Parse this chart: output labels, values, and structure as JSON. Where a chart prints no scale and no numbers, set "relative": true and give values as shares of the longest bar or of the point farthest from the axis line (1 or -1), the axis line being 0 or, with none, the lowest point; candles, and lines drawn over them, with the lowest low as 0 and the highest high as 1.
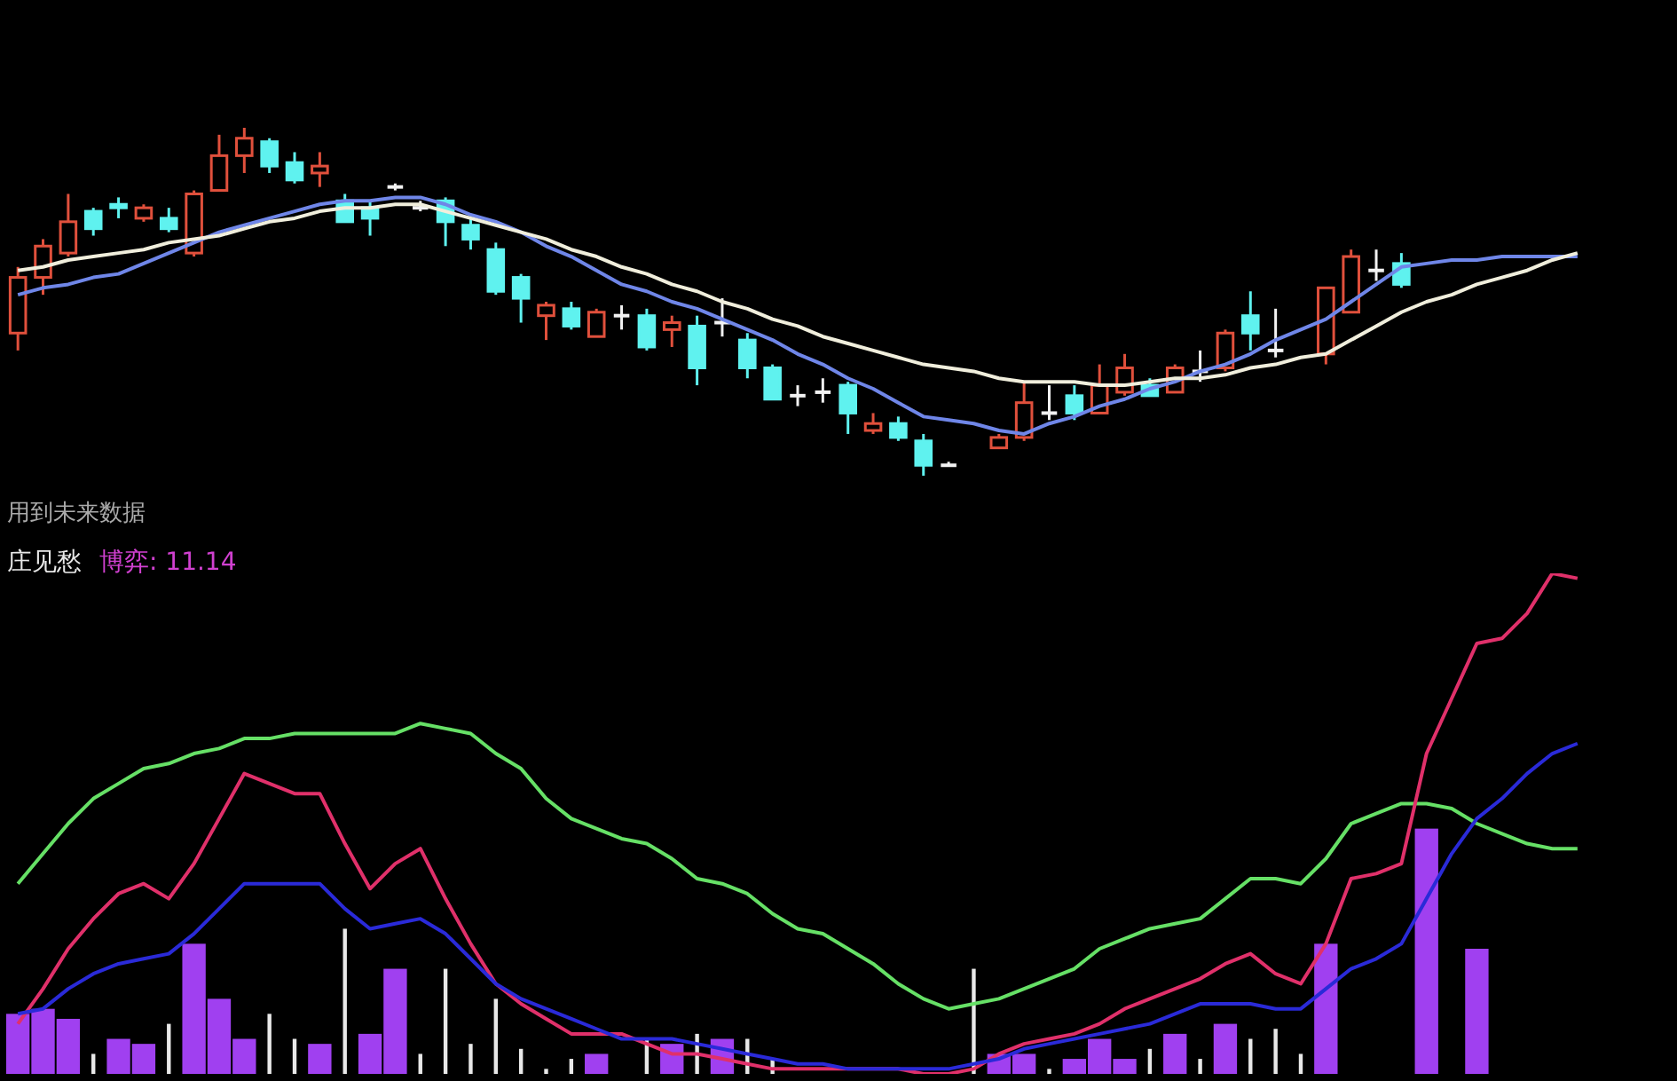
{
  "chart_data": [
    {
      "type": "candlestick",
      "relative": true,
      "annotations": [
        "用到未来数据"
      ],
      "categories": [
        null,
        null,
        null,
        null,
        null,
        null,
        null,
        null,
        null,
        null,
        null,
        null,
        null,
        null,
        null,
        null,
        null,
        null,
        null,
        null,
        null,
        null,
        null,
        null,
        null,
        null,
        null,
        null,
        null,
        null,
        null,
        null,
        null,
        null,
        null,
        null,
        null,
        null,
        null,
        null,
        null,
        null,
        null,
        null,
        null,
        null,
        null,
        null,
        null,
        null,
        null,
        null,
        null,
        null,
        null,
        null,
        null,
        null,
        null,
        null,
        null,
        null,
        null
      ],
      "ohlc": [
        [
          0.41,
          0.6,
          0.36,
          0.57
        ],
        [
          0.57,
          0.68,
          0.52,
          0.66
        ],
        [
          0.64,
          0.81,
          0.63,
          0.73
        ],
        [
          0.76,
          0.77,
          0.69,
          0.71
        ],
        [
          0.78,
          0.8,
          0.74,
          0.77
        ],
        [
          0.74,
          0.78,
          0.73,
          0.77
        ],
        [
          0.74,
          0.77,
          0.7,
          0.71
        ],
        [
          0.64,
          0.82,
          0.63,
          0.81
        ],
        [
          0.82,
          0.98,
          0.82,
          0.92
        ],
        [
          0.92,
          1,
          0.87,
          0.97
        ],
        [
          0.96,
          0.97,
          0.87,
          0.89
        ],
        [
          0.9,
          0.93,
          0.84,
          0.85
        ],
        [
          0.87,
          0.93,
          0.83,
          0.89
        ],
        [
          0.79,
          0.81,
          0.73,
          0.73
        ],
        [
          0.77,
          0.79,
          0.69,
          0.74
        ],
        [
          0.83,
          0.84,
          0.82,
          0.83
        ],
        [
          0.77,
          0.79,
          0.76,
          0.77
        ],
        [
          0.79,
          0.8,
          0.66,
          0.73
        ],
        [
          0.72,
          0.74,
          0.65,
          0.68
        ],
        [
          0.65,
          0.67,
          0.52,
          0.53
        ],
        [
          0.57,
          0.58,
          0.44,
          0.51
        ],
        [
          0.46,
          0.5,
          0.39,
          0.49
        ],
        [
          0.48,
          0.5,
          0.42,
          0.43
        ],
        [
          0.4,
          0.48,
          0.4,
          0.47
        ],
        [
          0.46,
          0.49,
          0.42,
          0.46
        ],
        [
          0.46,
          0.48,
          0.36,
          0.37
        ],
        [
          0.42,
          0.46,
          0.37,
          0.44
        ],
        [
          0.43,
          0.46,
          0.26,
          0.31
        ],
        [
          0.44,
          0.51,
          0.4,
          0.44
        ],
        [
          0.39,
          0.41,
          0.28,
          0.31
        ],
        [
          0.31,
          0.32,
          0.22,
          0.22
        ],
        [
          0.23,
          0.26,
          0.2,
          0.23
        ],
        [
          0.24,
          0.28,
          0.21,
          0.24
        ],
        [
          0.26,
          0.27,
          0.12,
          0.18
        ],
        [
          0.13,
          0.18,
          0.12,
          0.15
        ],
        [
          0.15,
          0.17,
          0.1,
          0.11
        ],
        [
          0.1,
          0.12,
          0,
          0.03
        ],
        [
          0.03,
          0.04,
          0.03,
          0.03
        ],
        null,
        [
          0.08,
          0.12,
          0.08,
          0.11
        ],
        [
          0.11,
          0.27,
          0.1,
          0.21
        ],
        [
          0.18,
          0.26,
          0.16,
          0.18
        ],
        [
          0.23,
          0.26,
          0.16,
          0.18
        ],
        [
          0.18,
          0.32,
          0.18,
          0.26
        ],
        [
          0.24,
          0.35,
          0.23,
          0.31
        ],
        [
          0.26,
          0.28,
          0.23,
          0.23
        ],
        [
          0.24,
          0.32,
          0.24,
          0.31
        ],
        [
          0.3,
          0.36,
          0.27,
          0.3
        ],
        [
          0.31,
          0.42,
          0.3,
          0.41
        ],
        [
          0.46,
          0.53,
          0.36,
          0.41
        ],
        [
          0.36,
          0.48,
          0.34,
          0.36
        ],
        null,
        [
          0.35,
          0.54,
          0.32,
          0.54
        ],
        [
          0.47,
          0.65,
          0.47,
          0.63
        ],
        [
          0.59,
          0.65,
          0.56,
          0.59
        ],
        [
          0.61,
          0.64,
          0.54,
          0.55
        ],
        null,
        null,
        null,
        null,
        null,
        null,
        null
      ],
      "series": [
        {
          "type": "line",
          "color": "#6f86e8",
          "values": [
            0.52,
            0.54,
            0.55,
            0.57,
            0.58,
            0.61,
            0.64,
            0.67,
            0.7,
            0.72,
            0.74,
            0.76,
            0.78,
            0.79,
            0.79,
            0.8,
            0.8,
            0.78,
            0.75,
            0.73,
            0.7,
            0.66,
            0.63,
            0.59,
            0.55,
            0.53,
            0.5,
            0.48,
            0.45,
            0.42,
            0.39,
            0.35,
            0.32,
            0.28,
            0.25,
            0.21,
            0.17,
            0.16,
            0.15,
            0.13,
            0.12,
            0.15,
            0.17,
            0.2,
            0.22,
            0.25,
            0.27,
            0.3,
            0.32,
            0.35,
            0.39,
            0.42,
            0.45,
            0.5,
            0.55,
            0.6,
            0.61,
            0.62,
            0.62,
            0.63,
            0.63,
            0.63,
            0.63
          ]
        },
        {
          "type": "line",
          "color": "#f0eedc",
          "values": [
            0.59,
            0.6,
            0.62,
            0.63,
            0.64,
            0.65,
            0.67,
            0.68,
            0.69,
            0.71,
            0.73,
            0.74,
            0.76,
            0.77,
            0.77,
            0.78,
            0.78,
            0.76,
            0.74,
            0.72,
            0.7,
            0.68,
            0.65,
            0.63,
            0.6,
            0.58,
            0.55,
            0.53,
            0.5,
            0.48,
            0.45,
            0.43,
            0.4,
            0.38,
            0.36,
            0.34,
            0.32,
            0.31,
            0.3,
            0.28,
            0.27,
            0.27,
            0.27,
            0.26,
            0.26,
            0.27,
            0.28,
            0.28,
            0.29,
            0.31,
            0.32,
            0.34,
            0.35,
            0.39,
            0.43,
            0.47,
            0.5,
            0.52,
            0.55,
            0.57,
            0.59,
            0.62,
            0.64
          ]
        }
      ]
    },
    {
      "type": "line",
      "relative": true,
      "title": "庄见愁",
      "annotations": [
        "博弈: 11.14"
      ],
      "categories": [
        null,
        null,
        null,
        null,
        null,
        null,
        null,
        null,
        null,
        null,
        null,
        null,
        null,
        null,
        null,
        null,
        null,
        null,
        null,
        null,
        null,
        null,
        null,
        null,
        null,
        null,
        null,
        null,
        null,
        null,
        null,
        null,
        null,
        null,
        null,
        null,
        null,
        null,
        null,
        null,
        null,
        null,
        null,
        null,
        null,
        null,
        null,
        null,
        null,
        null,
        null,
        null,
        null,
        null,
        null,
        null,
        null,
        null,
        null,
        null,
        null,
        null,
        null
      ],
      "series": [
        {
          "type": "bar",
          "color": "#a040f0",
          "values": [
            0.12,
            0.13,
            0.11,
            null,
            0.07,
            0.06,
            null,
            0.26,
            0.15,
            0.07,
            null,
            null,
            0.06,
            null,
            0.08,
            0.21,
            null,
            null,
            null,
            null,
            null,
            null,
            null,
            0.04,
            null,
            null,
            0.06,
            null,
            0.07,
            null,
            null,
            null,
            null,
            null,
            null,
            null,
            null,
            null,
            null,
            0.04,
            0.04,
            null,
            0.03,
            0.07,
            0.03,
            null,
            0.08,
            null,
            0.1,
            null,
            null,
            null,
            0.26,
            null,
            null,
            null,
            0.49,
            null,
            0.25,
            null,
            null,
            null,
            null
          ]
        },
        {
          "type": "bar",
          "color": "#e8e8e8",
          "values": [
            null,
            null,
            null,
            0.04,
            null,
            null,
            0.1,
            null,
            null,
            null,
            0.12,
            0.07,
            null,
            0.29,
            null,
            null,
            0.04,
            0.21,
            0.06,
            0.15,
            0.05,
            0.01,
            0.03,
            null,
            null,
            0.07,
            null,
            0.08,
            null,
            0.07,
            0.03,
            null,
            null,
            null,
            null,
            null,
            null,
            null,
            0.21,
            null,
            null,
            0.01,
            null,
            null,
            null,
            0.05,
            null,
            0.03,
            null,
            0.07,
            0.09,
            0.04,
            null,
            null,
            null,
            null,
            null,
            null,
            null,
            null,
            null,
            null,
            null
          ]
        },
        {
          "type": "line",
          "color": "#66e066",
          "values": [
            0.38,
            0.44,
            0.5,
            0.55,
            0.58,
            0.61,
            0.62,
            0.64,
            0.65,
            0.67,
            0.67,
            0.68,
            0.68,
            0.68,
            0.68,
            0.68,
            0.7,
            0.69,
            0.68,
            0.64,
            0.61,
            0.55,
            0.51,
            0.49,
            0.47,
            0.46,
            0.43,
            0.39,
            0.38,
            0.36,
            0.32,
            0.29,
            0.28,
            0.25,
            0.22,
            0.18,
            0.15,
            0.13,
            0.14,
            0.15,
            0.17,
            0.19,
            0.21,
            0.25,
            0.27,
            0.29,
            0.3,
            0.31,
            0.35,
            0.39,
            0.39,
            0.38,
            0.43,
            0.5,
            0.52,
            0.54,
            0.54,
            0.53,
            0.5,
            0.48,
            0.46,
            0.45,
            0.45
          ]
        },
        {
          "type": "line",
          "color": "#e0306a",
          "values": [
            0.1,
            0.17,
            0.25,
            0.31,
            0.36,
            0.38,
            0.35,
            0.42,
            0.51,
            0.6,
            0.58,
            0.56,
            0.56,
            0.46,
            0.37,
            0.42,
            0.45,
            0.35,
            0.26,
            0.18,
            0.14,
            0.11,
            0.08,
            0.08,
            0.08,
            0.06,
            0.04,
            0.04,
            0.03,
            0.02,
            0.01,
            0.01,
            0.01,
            0.01,
            0.01,
            0.01,
            0,
            0,
            0.01,
            0.04,
            0.06,
            0.07,
            0.08,
            0.1,
            0.13,
            0.15,
            0.17,
            0.19,
            0.22,
            0.24,
            0.2,
            0.18,
            0.26,
            0.39,
            0.4,
            0.42,
            0.64,
            0.75,
            0.86,
            0.87,
            0.92,
            1,
            0.99
          ]
        },
        {
          "type": "line",
          "color": "#2a2ad8",
          "values": [
            0.12,
            0.13,
            0.17,
            0.2,
            0.22,
            0.23,
            0.24,
            0.28,
            0.33,
            0.38,
            0.38,
            0.38,
            0.38,
            0.33,
            0.29,
            0.3,
            0.31,
            0.28,
            0.23,
            0.18,
            0.15,
            0.13,
            0.11,
            0.09,
            0.07,
            0.07,
            0.07,
            0.06,
            0.05,
            0.04,
            0.03,
            0.02,
            0.02,
            0.01,
            0.01,
            0.01,
            0.01,
            0.01,
            0.02,
            0.03,
            0.05,
            0.06,
            0.07,
            0.08,
            0.09,
            0.1,
            0.12,
            0.14,
            0.14,
            0.14,
            0.13,
            0.13,
            0.17,
            0.21,
            0.23,
            0.26,
            0.35,
            0.44,
            0.51,
            0.55,
            0.6,
            0.64,
            0.66
          ]
        }
      ]
    }
  ]
}
